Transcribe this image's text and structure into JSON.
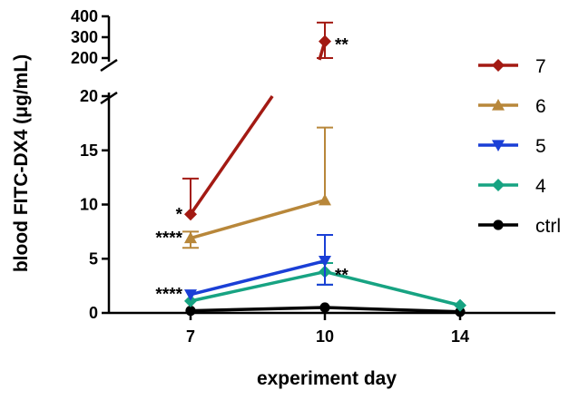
{
  "chart_data": {
    "type": "line",
    "xlabel": "experiment day",
    "ylabel": "blood FITC-DX4 (μg/mL)",
    "x_ticks": [
      7,
      10,
      14
    ],
    "y_ticks_lower": [
      0,
      5,
      10,
      15,
      20
    ],
    "y_ticks_upper": [
      200,
      300,
      400
    ],
    "y_axis_break": [
      20,
      200
    ],
    "grid": false,
    "legend_position": "right",
    "series": [
      {
        "name": "7",
        "color": "#a31a13",
        "marker": "diamond",
        "x": [
          7,
          10
        ],
        "y": [
          9.1,
          280
        ],
        "err_up": [
          3.3,
          90
        ],
        "err_down": [
          0,
          80
        ]
      },
      {
        "name": "6",
        "color": "#b8873a",
        "marker": "triangle-up",
        "x": [
          7,
          10
        ],
        "y": [
          6.9,
          10.4
        ],
        "err_up": [
          0.6,
          6.7
        ],
        "err_down": [
          0.9,
          0
        ]
      },
      {
        "name": "5",
        "color": "#1a3fd6",
        "marker": "triangle-down",
        "x": [
          7,
          10
        ],
        "y": [
          1.7,
          4.8
        ],
        "err_up": [
          0,
          2.4
        ],
        "err_down": [
          0,
          2.2
        ]
      },
      {
        "name": "4",
        "color": "#17a382",
        "marker": "diamond",
        "x": [
          7,
          10,
          14
        ],
        "y": [
          1.1,
          3.8,
          0.7
        ],
        "err_up": [
          0,
          0.8,
          0
        ],
        "err_down": [
          0,
          1.2,
          0
        ]
      },
      {
        "name": "ctrl",
        "color": "#000000",
        "marker": "circle",
        "x": [
          7,
          10,
          14
        ],
        "y": [
          0.2,
          0.5,
          0.1
        ],
        "err_up": [
          0,
          0,
          0
        ],
        "err_down": [
          0,
          0,
          0
        ]
      }
    ],
    "annotations": [
      {
        "text": "*",
        "series": "7",
        "x": 7,
        "side": "left"
      },
      {
        "text": "****",
        "series": "6",
        "x": 7,
        "side": "left"
      },
      {
        "text": "****",
        "series": "5",
        "x": 7,
        "side": "left"
      },
      {
        "text": "**",
        "series": "7",
        "x": 10,
        "side": "right"
      },
      {
        "text": "**",
        "series": "4",
        "x": 10,
        "side": "right"
      }
    ]
  }
}
